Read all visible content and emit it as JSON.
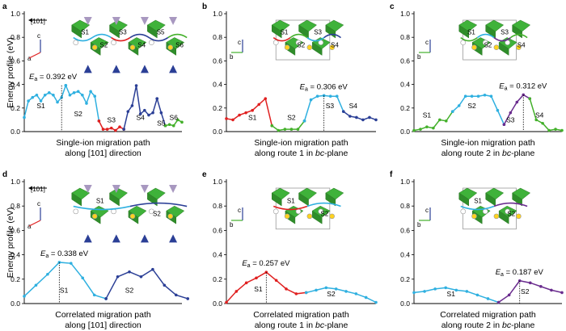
{
  "colors": {
    "S1": "#2fb0e0",
    "S2": "#2fb0e0",
    "S3": "#e02020",
    "S4": "#2b3f96",
    "S5": "#2b3f96",
    "S6": "#43b02a",
    "green": "#43b02a",
    "blue": "#2fb0e0",
    "red": "#e02020",
    "navy": "#2b3f96",
    "purple": "#6a2c8e",
    "octahedron": "#3fb23a",
    "tetra": "#a898c0"
  },
  "y_axis": {
    "label": "Energy profile (eV)",
    "ticks": [
      "0.0",
      "0.2",
      "0.4",
      "0.6",
      "0.8",
      "1.0"
    ],
    "ylim": [
      0,
      1.0
    ]
  },
  "chart_data": [
    {
      "panel": "a",
      "type": "line",
      "caption": [
        "Single-ion migration path",
        "along [101] direction"
      ],
      "caption_italic": "",
      "ea_text": "= 0.392 eV",
      "ea_value": 0.392,
      "ea_x": 9,
      "insets": [
        "[101]",
        "c",
        "a",
        "S1",
        "S2",
        "S3",
        "S4",
        "S5",
        "S6"
      ],
      "series": [
        {
          "name": "S1",
          "color": "blue",
          "x": [
            0,
            1,
            2,
            3,
            4,
            5,
            6,
            7,
            8,
            9,
            10
          ],
          "values": [
            0.12,
            0.26,
            0.29,
            0.31,
            0.26,
            0.31,
            0.33,
            0.31,
            0.25,
            0.29,
            0.392
          ]
        },
        {
          "name": "S2",
          "color": "blue",
          "x": [
            10,
            11,
            12,
            13,
            14,
            15,
            16,
            17,
            18
          ],
          "values": [
            0.392,
            0.31,
            0.33,
            0.34,
            0.31,
            0.24,
            0.34,
            0.3,
            0.09
          ]
        },
        {
          "name": "S3",
          "color": "red",
          "x": [
            18,
            19,
            20,
            21,
            22,
            23,
            24
          ],
          "values": [
            0.09,
            0.02,
            0.02,
            0.03,
            0.01,
            0.04,
            0.02
          ]
        },
        {
          "name": "S4",
          "color": "navy",
          "x": [
            24,
            25,
            26,
            27,
            28,
            29,
            30,
            31,
            32
          ],
          "values": [
            0.02,
            0.17,
            0.22,
            0.39,
            0.15,
            0.18,
            0.14,
            0.16,
            0.28
          ]
        },
        {
          "name": "S5",
          "color": "navy",
          "x": [
            32,
            33,
            34
          ],
          "values": [
            0.28,
            0.16,
            0.05
          ]
        },
        {
          "name": "S6",
          "color": "green",
          "x": [
            34,
            35,
            36,
            37,
            38
          ],
          "values": [
            0.05,
            0.06,
            0.05,
            0.1,
            0.08
          ]
        }
      ],
      "segment_labels": [
        {
          "text": "S1",
          "x": 4,
          "y": 0.2
        },
        {
          "text": "S2",
          "x": 13,
          "y": 0.13
        },
        {
          "text": "S3",
          "x": 21,
          "y": 0.08
        },
        {
          "text": "S4",
          "x": 28,
          "y": 0.1
        },
        {
          "text": "S5",
          "x": 33,
          "y": 0.05
        },
        {
          "text": "S6",
          "x": 36,
          "y": 0.1
        }
      ],
      "xlim": [
        0,
        38
      ]
    },
    {
      "panel": "b",
      "type": "line",
      "caption": [
        "Single-ion migration path",
        "along route 1 in "
      ],
      "caption_italic": "bc",
      "ea_text": "= 0.306 eV",
      "ea_value": 0.306,
      "ea_x": 15,
      "insets": [
        "c",
        "b",
        "S1",
        "S2",
        "S3",
        "S4"
      ],
      "series": [
        {
          "name": "S1",
          "color": "red",
          "x": [
            0,
            1,
            2,
            3,
            4,
            5,
            6,
            7
          ],
          "values": [
            0.11,
            0.1,
            0.14,
            0.16,
            0.18,
            0.23,
            0.28,
            0.05
          ]
        },
        {
          "name": "S2",
          "color": "green",
          "x": [
            7,
            8,
            9,
            10,
            11,
            12
          ],
          "values": [
            0.05,
            0.01,
            0.02,
            0.02,
            0.02,
            0.09
          ]
        },
        {
          "name": "S3",
          "color": "blue",
          "x": [
            12,
            13,
            14,
            15,
            16,
            17,
            18
          ],
          "values": [
            0.09,
            0.27,
            0.3,
            0.306,
            0.3,
            0.3,
            0.17
          ]
        },
        {
          "name": "S4",
          "color": "navy",
          "x": [
            18,
            19,
            20,
            21,
            22,
            23
          ],
          "values": [
            0.17,
            0.13,
            0.12,
            0.1,
            0.12,
            0.1
          ]
        }
      ],
      "segment_labels": [
        {
          "text": "S1",
          "x": 4,
          "y": 0.1
        },
        {
          "text": "S2",
          "x": 10,
          "y": 0.1
        },
        {
          "text": "S3",
          "x": 15.9,
          "y": 0.2
        },
        {
          "text": "S4",
          "x": 19.5,
          "y": 0.2
        }
      ],
      "xlim": [
        0,
        23
      ]
    },
    {
      "panel": "c",
      "type": "line",
      "caption": [
        "Single-ion migration path",
        "along route 2 in "
      ],
      "caption_italic": "bc",
      "ea_text": "= 0.312 eV",
      "ea_value": 0.312,
      "ea_x": 17,
      "insets": [
        "c",
        "b",
        "S1",
        "S2",
        "S3",
        "S4"
      ],
      "series": [
        {
          "name": "S1",
          "color": "green",
          "x": [
            0,
            1,
            2,
            3,
            4,
            5,
            6
          ],
          "values": [
            0.01,
            0.02,
            0.04,
            0.03,
            0.1,
            0.09,
            0.17
          ]
        },
        {
          "name": "S2",
          "color": "blue",
          "x": [
            6,
            7,
            8,
            9,
            10,
            11,
            12,
            13,
            14
          ],
          "values": [
            0.17,
            0.22,
            0.3,
            0.3,
            0.3,
            0.31,
            0.3,
            0.18,
            0.06
          ]
        },
        {
          "name": "S3",
          "color": "purple",
          "x": [
            14,
            15,
            16,
            17,
            18
          ],
          "values": [
            0.06,
            0.16,
            0.25,
            0.312,
            0.28
          ]
        },
        {
          "name": "S4",
          "color": "green",
          "x": [
            18,
            19,
            20,
            21,
            22,
            23
          ],
          "values": [
            0.28,
            0.1,
            0.07,
            0.01,
            0.02,
            0.01
          ]
        }
      ],
      "segment_labels": [
        {
          "text": "S1",
          "x": 2,
          "y": 0.12
        },
        {
          "text": "S2",
          "x": 9,
          "y": 0.2
        },
        {
          "text": "S3",
          "x": 15,
          "y": 0.08
        },
        {
          "text": "S4",
          "x": 19.5,
          "y": 0.12
        }
      ],
      "xlim": [
        0,
        23
      ]
    },
    {
      "panel": "d",
      "type": "line",
      "caption": [
        "Correlated migration path",
        "along [101] direction"
      ],
      "caption_italic": "",
      "ea_text": "= 0.338 eV",
      "ea_value": 0.338,
      "ea_x": 3,
      "insets": [
        "[101]",
        "c",
        "a",
        "S1",
        "S2"
      ],
      "series": [
        {
          "name": "S1",
          "color": "blue",
          "x": [
            0,
            1,
            2,
            3,
            4,
            5,
            6,
            7
          ],
          "values": [
            0.06,
            0.15,
            0.24,
            0.338,
            0.33,
            0.21,
            0.07,
            0.04
          ]
        },
        {
          "name": "S2",
          "color": "navy",
          "x": [
            7,
            8,
            9,
            10,
            11,
            12,
            13,
            14
          ],
          "values": [
            0.04,
            0.22,
            0.26,
            0.22,
            0.28,
            0.15,
            0.07,
            0.04
          ]
        }
      ],
      "segment_labels": [
        {
          "text": "S1",
          "x": 3.4,
          "y": 0.09
        },
        {
          "text": "S2",
          "x": 9,
          "y": 0.09
        }
      ],
      "xlim": [
        0,
        13.5
      ]
    },
    {
      "panel": "e",
      "type": "line",
      "caption": [
        "Correlated migration path",
        "along route 1 in "
      ],
      "caption_italic": "bc",
      "ea_text": "= 0.257 eV",
      "ea_value": 0.257,
      "ea_x": 4,
      "insets": [
        "c",
        "b",
        "S1",
        "S2"
      ],
      "series": [
        {
          "name": "S1",
          "color": "red",
          "x": [
            0,
            1,
            2,
            3,
            4,
            5,
            6,
            7,
            8
          ],
          "values": [
            0.01,
            0.1,
            0.17,
            0.21,
            0.257,
            0.19,
            0.12,
            0.08,
            0.09
          ]
        },
        {
          "name": "S2",
          "color": "blue",
          "x": [
            8,
            9,
            10,
            11,
            12,
            13,
            14,
            15
          ],
          "values": [
            0.09,
            0.11,
            0.13,
            0.12,
            0.1,
            0.08,
            0.05,
            0.01
          ]
        }
      ],
      "segment_labels": [
        {
          "text": "S1",
          "x": 3.2,
          "y": 0.1
        },
        {
          "text": "S2",
          "x": 10.5,
          "y": 0.06
        }
      ],
      "xlim": [
        0,
        15
      ]
    },
    {
      "panel": "f",
      "type": "line",
      "caption": [
        "Correlated migration path",
        "along route 2 in "
      ],
      "caption_italic": "bc",
      "ea_text": "= 0.187 eV",
      "ea_value": 0.187,
      "ea_x": 10,
      "insets": [
        "c",
        "b",
        "S1",
        "S2"
      ],
      "series": [
        {
          "name": "S1",
          "color": "blue",
          "x": [
            0,
            1,
            2,
            3,
            4,
            5,
            6,
            7,
            8
          ],
          "values": [
            0.09,
            0.1,
            0.12,
            0.13,
            0.11,
            0.1,
            0.07,
            0.04,
            0.01
          ]
        },
        {
          "name": "S2",
          "color": "purple",
          "x": [
            8,
            9,
            10,
            11,
            12,
            13,
            14
          ],
          "values": [
            0.01,
            0.07,
            0.187,
            0.17,
            0.14,
            0.11,
            0.09
          ]
        }
      ],
      "segment_labels": [
        {
          "text": "S1",
          "x": 3.5,
          "y": 0.06
        },
        {
          "text": "S2",
          "x": 10.5,
          "y": 0.08
        }
      ],
      "xlim": [
        0,
        14
      ]
    }
  ]
}
